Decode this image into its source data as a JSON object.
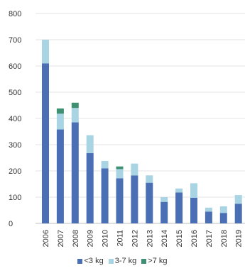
{
  "chart_data": {
    "type": "bar",
    "stacked": true,
    "title": "",
    "xlabel": "",
    "ylabel": "",
    "ylim": [
      0,
      800
    ],
    "y_ticks": [
      0,
      100,
      200,
      300,
      400,
      500,
      600,
      700,
      800
    ],
    "grid": true,
    "legend_position": "bottom",
    "categories": [
      "2006",
      "2007",
      "2008",
      "2009",
      "2010",
      "2011",
      "2012",
      "2013",
      "2014",
      "2015",
      "2016",
      "2017",
      "2018",
      "2019"
    ],
    "series": [
      {
        "name": "<3 kg",
        "color": "#4a6fb5",
        "values": [
          610,
          358,
          385,
          268,
          210,
          172,
          183,
          155,
          82,
          118,
          98,
          45,
          40,
          75
        ]
      },
      {
        "name": "3-7 kg",
        "color": "#a9d4e3",
        "values": [
          90,
          60,
          55,
          68,
          28,
          35,
          45,
          28,
          18,
          15,
          55,
          15,
          25,
          33
        ]
      },
      {
        "name": ">7 kg",
        "color": "#3f8f72",
        "values": [
          0,
          20,
          20,
          0,
          0,
          10,
          0,
          0,
          0,
          0,
          0,
          0,
          0,
          0
        ]
      }
    ]
  }
}
